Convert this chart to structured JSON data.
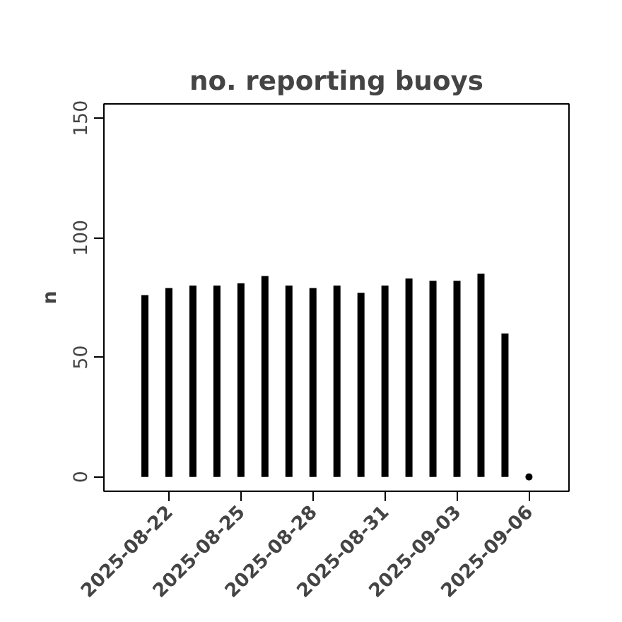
{
  "chart_data": {
    "type": "bar",
    "title": "no. reporting buoys",
    "ylabel": "n",
    "x": [
      "2025-08-21",
      "2025-08-22",
      "2025-08-23",
      "2025-08-24",
      "2025-08-25",
      "2025-08-26",
      "2025-08-27",
      "2025-08-28",
      "2025-08-29",
      "2025-08-30",
      "2025-08-31",
      "2025-09-01",
      "2025-09-02",
      "2025-09-03",
      "2025-09-04",
      "2025-09-05",
      "2025-09-06"
    ],
    "series": [
      {
        "color": "#000000",
        "values": [
          76,
          79,
          80,
          80,
          81,
          84,
          80,
          79,
          80,
          77,
          80,
          83,
          82,
          82,
          85,
          60,
          0
        ]
      }
    ],
    "xlim": [
      "2025-08-19T07:00",
      "2025-09-07T16:00"
    ],
    "xticks": [
      "2025-08-22",
      "2025-08-25",
      "2025-08-28",
      "2025-08-31",
      "2025-09-03",
      "2025-09-06"
    ],
    "ylim": [
      -6,
      156
    ],
    "yticks": [
      0,
      50,
      100,
      150
    ],
    "grid": false
  }
}
